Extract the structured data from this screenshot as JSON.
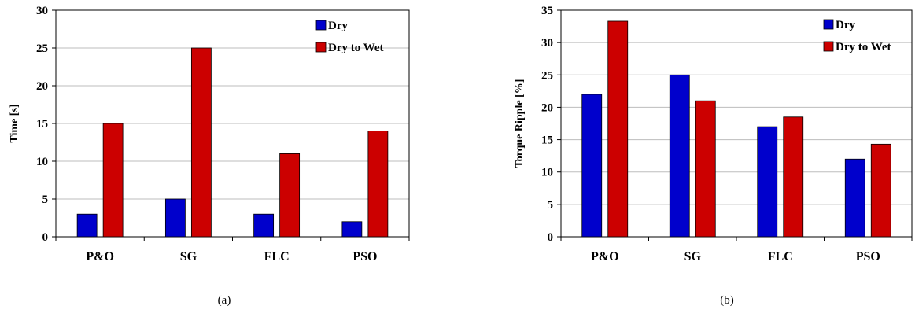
{
  "chart_data": [
    {
      "type": "bar",
      "categories": [
        "P&O",
        "SG",
        "FLC",
        "PSO"
      ],
      "series": [
        {
          "name": "Dry",
          "values": [
            3,
            5,
            3,
            2
          ],
          "color": "#0000cc"
        },
        {
          "name": "Dry to Wet",
          "values": [
            15,
            25,
            11,
            14
          ],
          "color": "#cc0000"
        }
      ],
      "ylabel": "Time [s]",
      "xlabel": "",
      "ylim": [
        0,
        30
      ],
      "yticks": [
        0,
        5,
        10,
        15,
        20,
        25,
        30
      ],
      "grid": true,
      "legend": "top-right",
      "caption": "(a)"
    },
    {
      "type": "bar",
      "categories": [
        "P&O",
        "SG",
        "FLC",
        "PSO"
      ],
      "series": [
        {
          "name": "Dry",
          "values": [
            22,
            25,
            17,
            12
          ],
          "color": "#0000cc"
        },
        {
          "name": "Dry to Wet",
          "values": [
            33.3,
            21,
            18.5,
            14.3
          ],
          "color": "#cc0000"
        }
      ],
      "ylabel": "Torque Ripple [%]",
      "xlabel": "",
      "ylim": [
        0,
        35
      ],
      "yticks": [
        0,
        5,
        10,
        15,
        20,
        25,
        30,
        35
      ],
      "grid": true,
      "legend": "top-right",
      "caption": "(b)"
    }
  ]
}
